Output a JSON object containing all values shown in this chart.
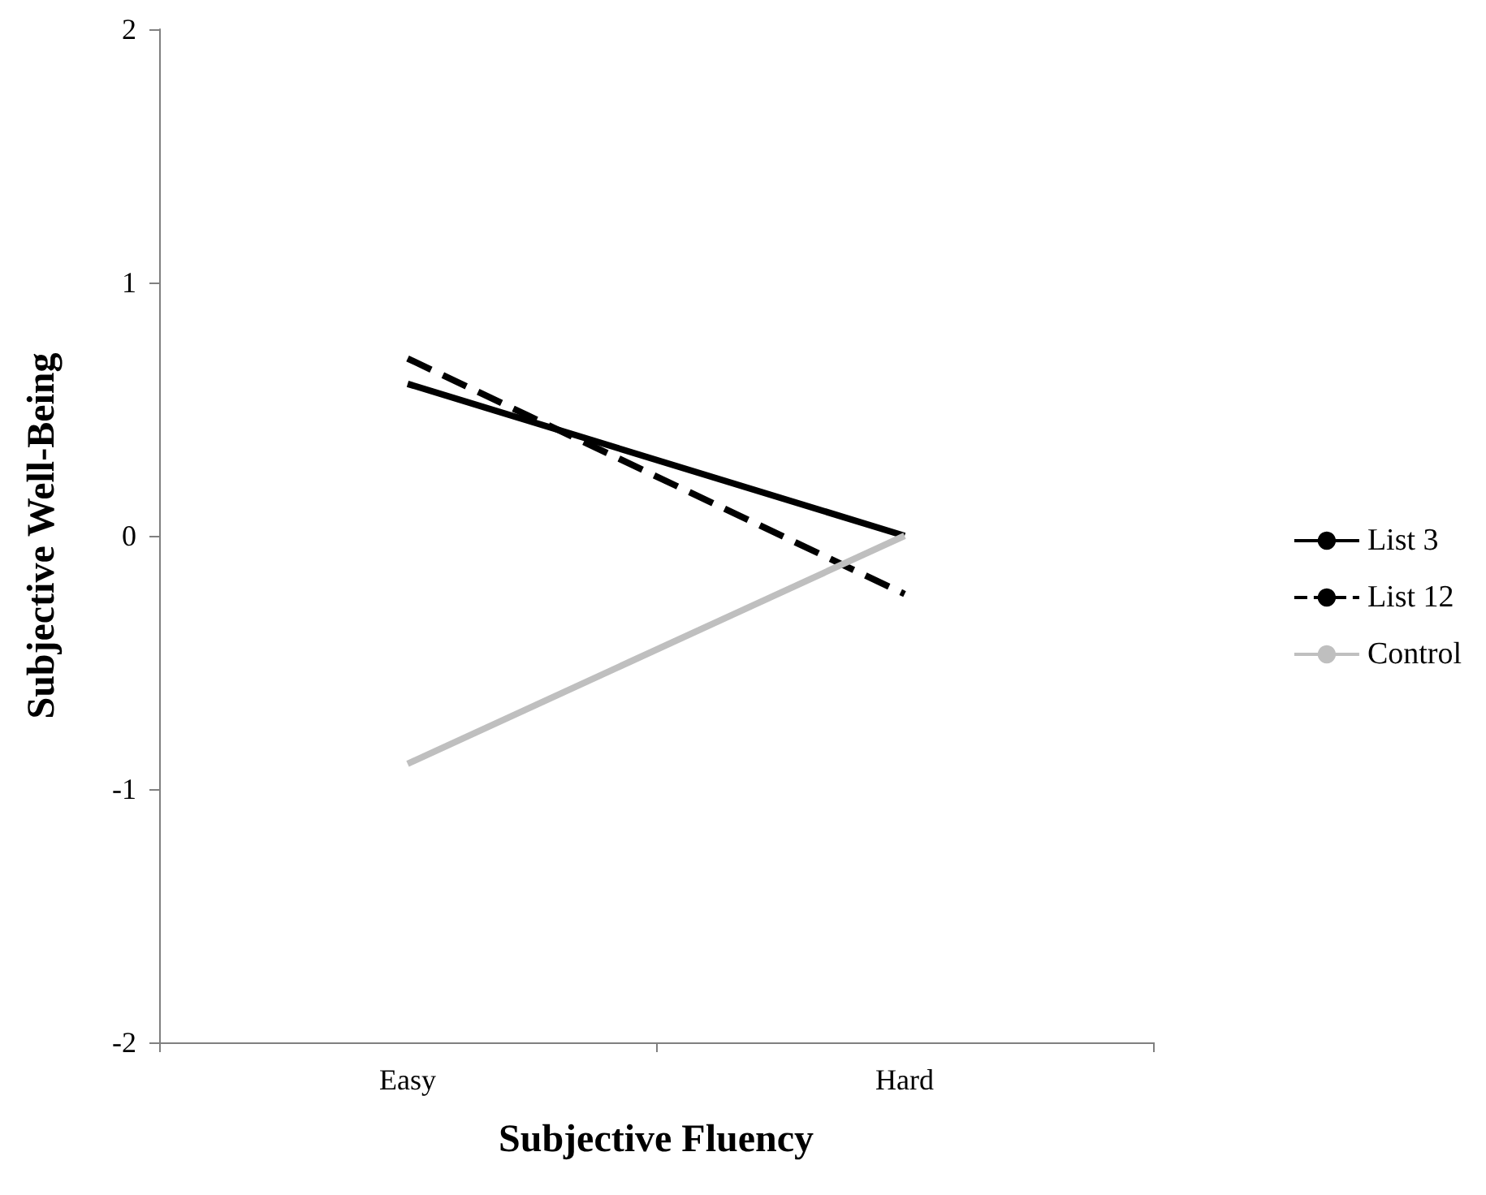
{
  "chart_data": {
    "type": "line",
    "xlabel": "Subjective Fluency",
    "ylabel": "Subjective Well-Being",
    "categories": [
      "Easy",
      "Hard"
    ],
    "series": [
      {
        "name": "List 3",
        "color": "#000000",
        "line_style": "solid",
        "values": [
          0.6,
          0
        ]
      },
      {
        "name": "List 12",
        "color": "#000000",
        "line_style": "dashed",
        "values": [
          0.7,
          -0.23
        ]
      },
      {
        "name": "Control",
        "color": "#bfbfbf",
        "line_style": "solid",
        "values": [
          -0.9,
          0
        ]
      }
    ],
    "ylim": [
      -2,
      2
    ],
    "yticks": [
      -2,
      -1,
      0,
      1,
      2
    ],
    "grid": false,
    "legend": "right",
    "marker": "none"
  }
}
